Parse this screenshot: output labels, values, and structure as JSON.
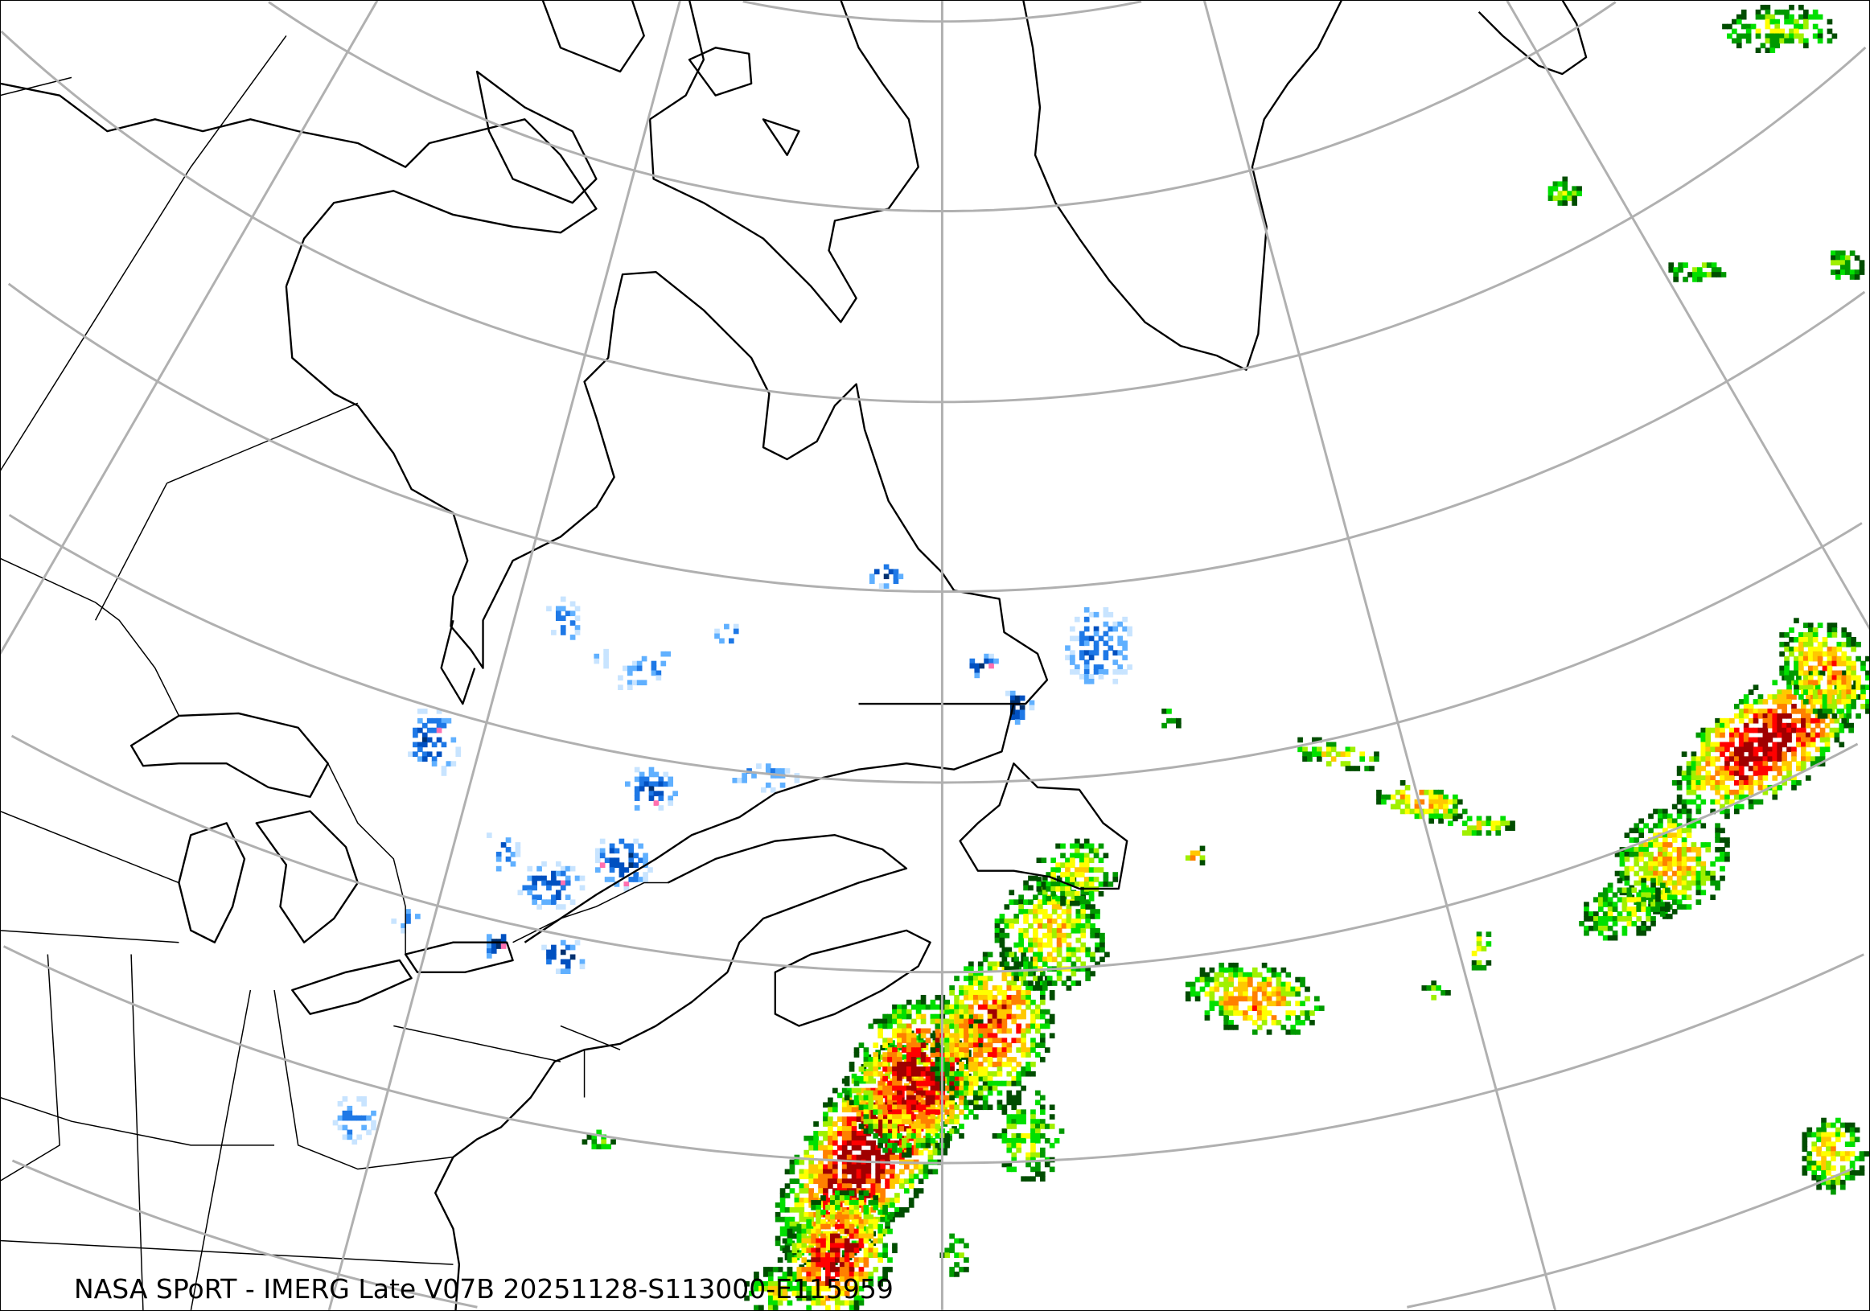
{
  "caption": "NASA SPoRT - IMERG Late V07B 20251128-S113000-E115959",
  "map": {
    "product": "IMERG Late V07B precipitation",
    "background_color": "#ffffff",
    "coastline_color": "#000000",
    "graticule_color": "#b0b0b0",
    "rain_colors": [
      "#004d00",
      "#009900",
      "#00e000",
      "#a0f000",
      "#ffff00",
      "#ffc800",
      "#ff8000",
      "#ff0000",
      "#a00000"
    ],
    "snow_colors": [
      "#c8e4ff",
      "#60b0ff",
      "#1e78e6",
      "#0050c0",
      "#003070"
    ],
    "mixed_color": "#ff70b0"
  }
}
